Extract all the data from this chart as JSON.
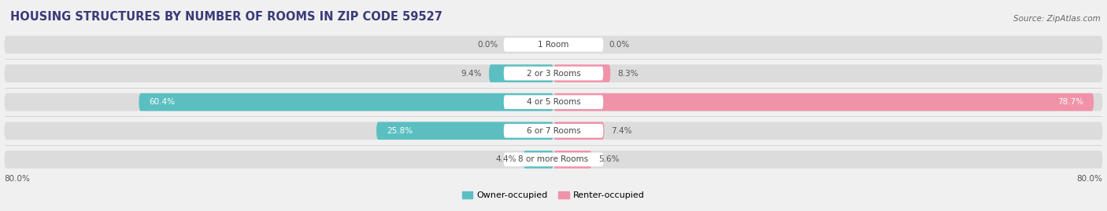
{
  "title": "HOUSING STRUCTURES BY NUMBER OF ROOMS IN ZIP CODE 59527",
  "source": "Source: ZipAtlas.com",
  "categories": [
    "1 Room",
    "2 or 3 Rooms",
    "4 or 5 Rooms",
    "6 or 7 Rooms",
    "8 or more Rooms"
  ],
  "owner_values": [
    0.0,
    9.4,
    60.4,
    25.8,
    4.4
  ],
  "renter_values": [
    0.0,
    8.3,
    78.7,
    7.4,
    5.6
  ],
  "owner_color": "#5bbfc2",
  "renter_color": "#f093a8",
  "axis_min": -80.0,
  "axis_max": 80.0,
  "axis_left_label": "80.0%",
  "axis_right_label": "80.0%",
  "legend_owner": "Owner-occupied",
  "legend_renter": "Renter-occupied",
  "background_color": "#f0f0f0",
  "bar_bg_color": "#dcdcdc",
  "title_color": "#3a3a7a",
  "title_fontsize": 10.5,
  "source_fontsize": 7.5,
  "label_fontsize": 7.5,
  "category_fontsize": 7.5
}
